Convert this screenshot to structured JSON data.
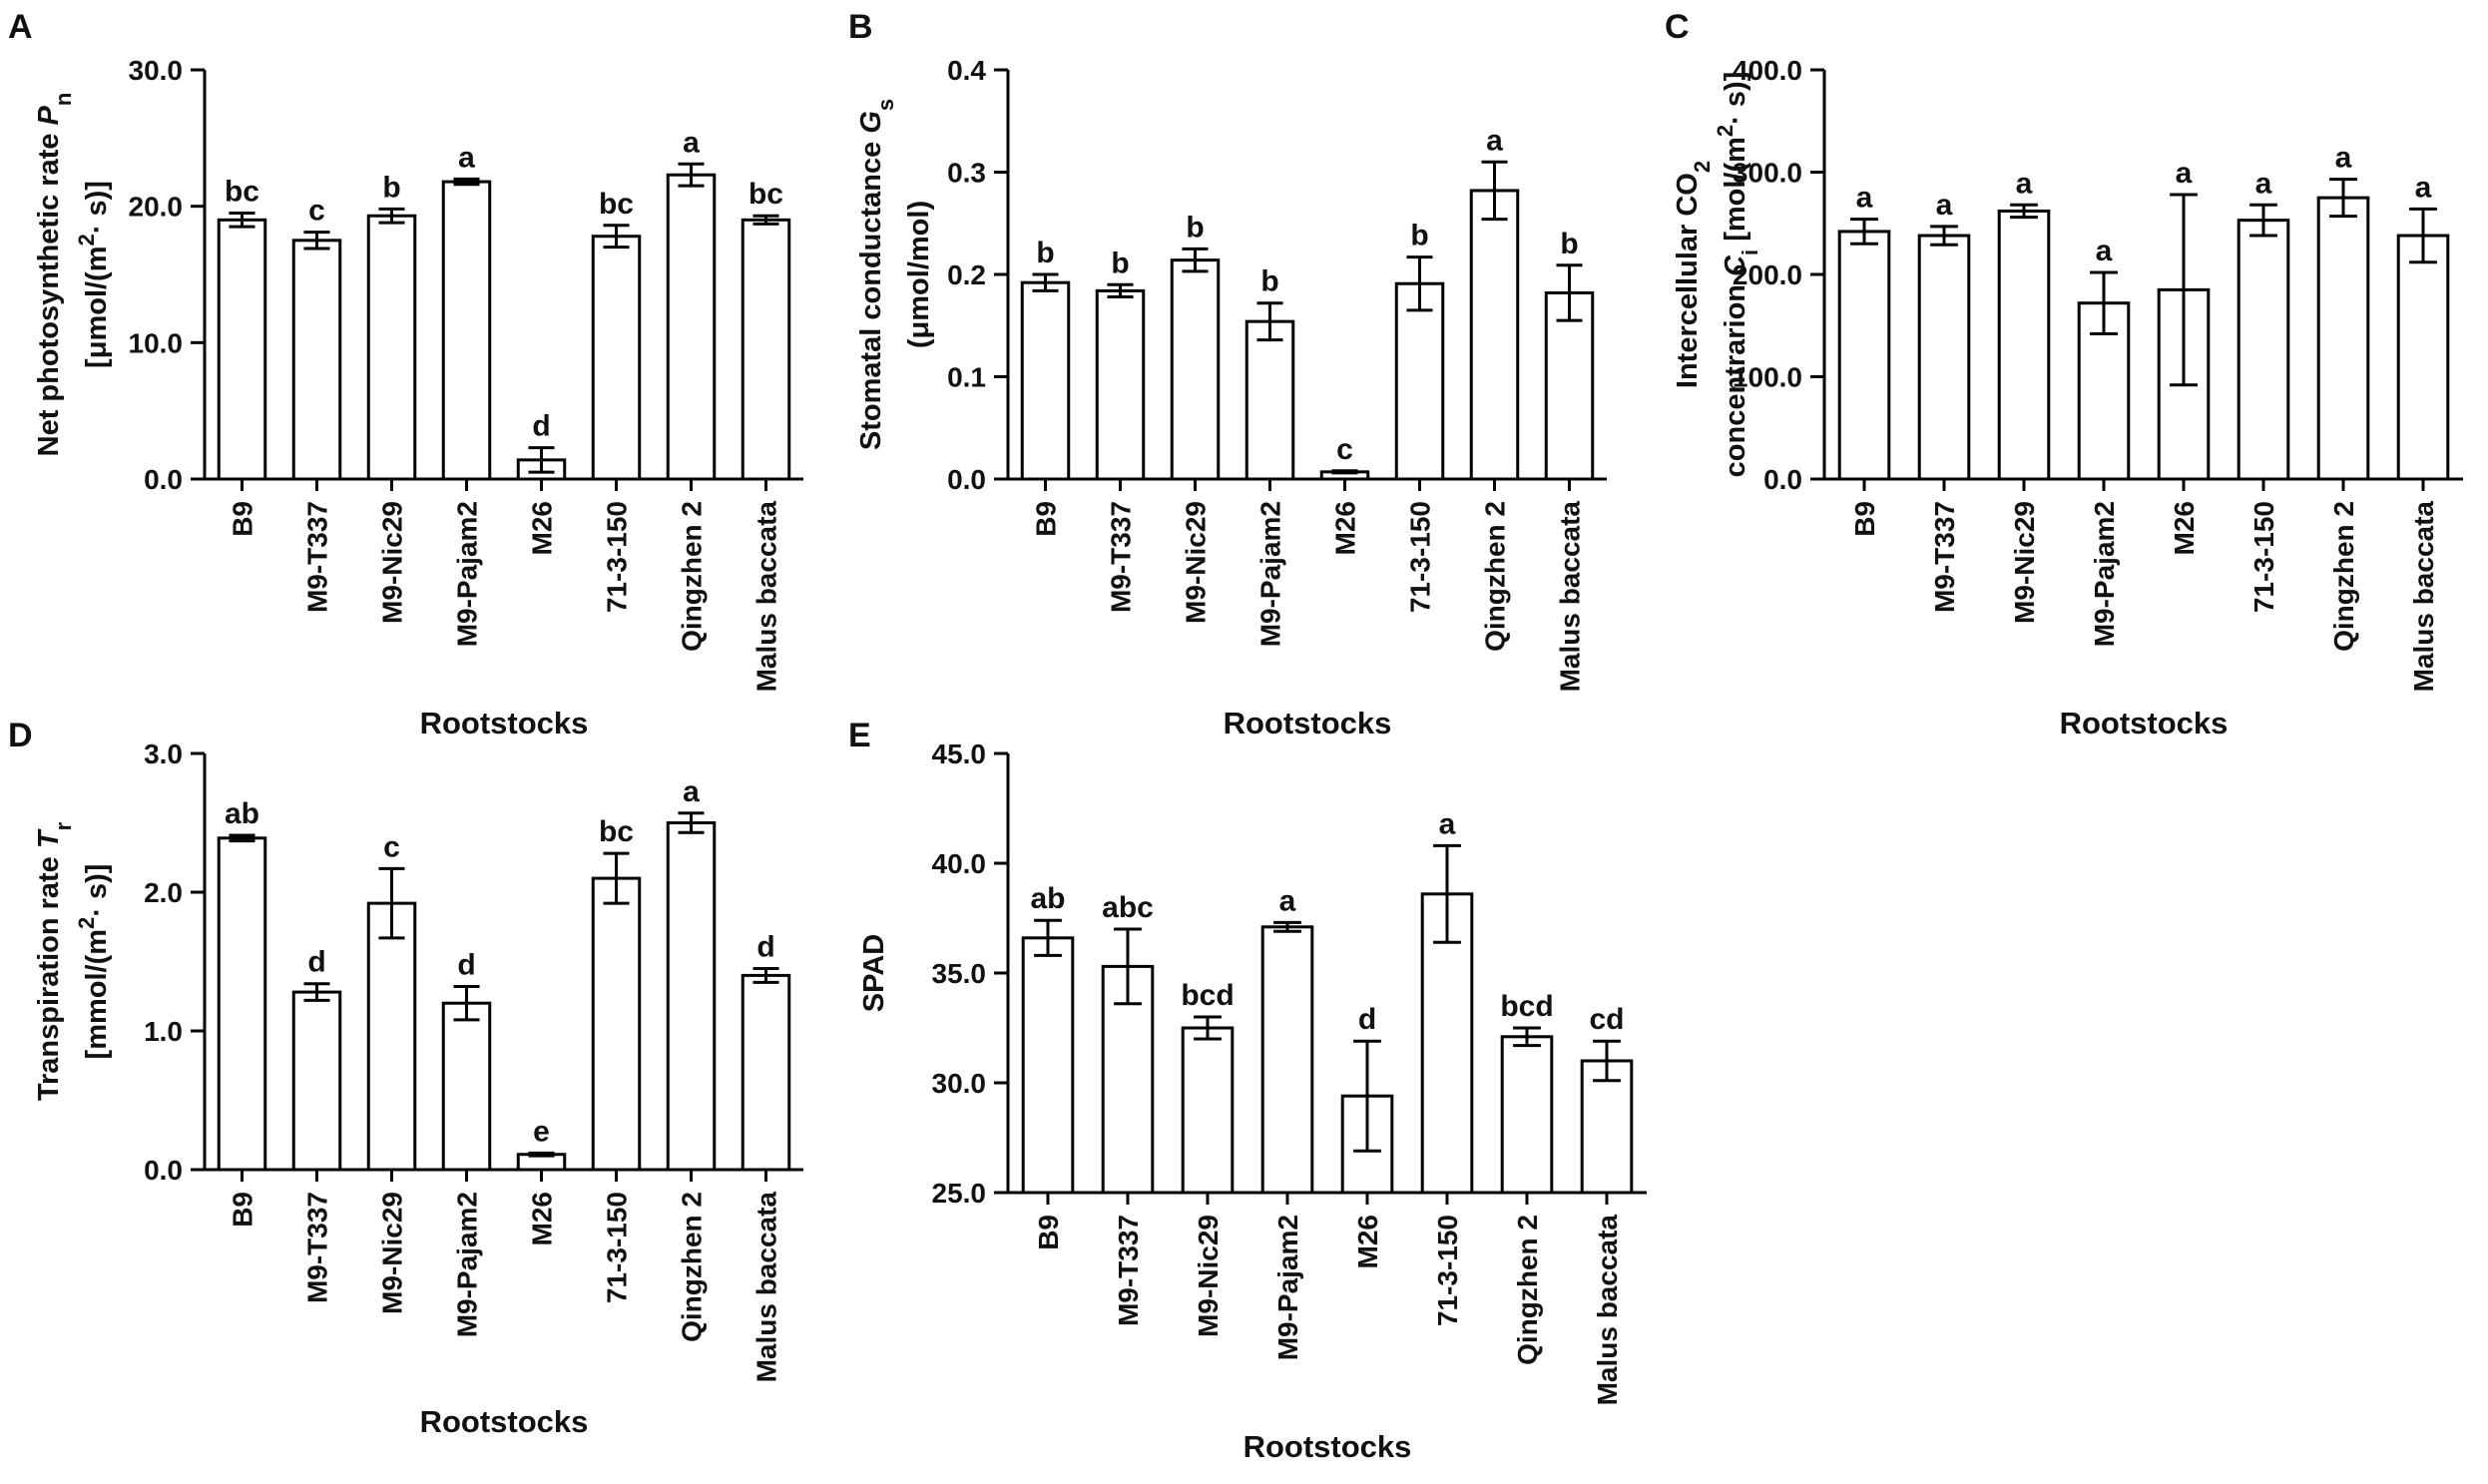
{
  "figure": {
    "categories": [
      "B9",
      "M9-T337",
      "M9-Nic29",
      "M9-Pajam2",
      "M26",
      "71-3-150",
      "Qingzhen 2",
      "Malus baccata"
    ],
    "xlabel": "Rootstocks"
  },
  "chart_data": [
    {
      "panel": "A",
      "type": "bar",
      "ylabel": "Net photosynthetic rate Pn [μmol/(m2· s)]",
      "ylabel_lines": [
        [
          {
            "t": "Net photosynthetic rate "
          },
          {
            "t": "P",
            "style": "italic"
          },
          {
            "t": "n",
            "style": "sub"
          }
        ],
        [
          {
            "t": "[μmol/(m"
          },
          {
            "t": "2",
            "style": "sup"
          },
          {
            "t": "· s)]"
          }
        ]
      ],
      "xlabel": "Rootstocks",
      "ylim": [
        0,
        30
      ],
      "ticks": [
        0,
        10,
        20,
        30
      ],
      "tick_labels": [
        "0.0",
        "10.0",
        "20.0",
        "30.0"
      ],
      "categories": [
        "B9",
        "M9-T337",
        "M9-Nic29",
        "M9-Pajam2",
        "M26",
        "71-3-150",
        "Qingzhen 2",
        "Malus baccata"
      ],
      "values": [
        19.0,
        17.5,
        19.3,
        21.8,
        1.4,
        17.8,
        22.3,
        19.0
      ],
      "errors": [
        0.5,
        0.6,
        0.5,
        0.2,
        0.9,
        0.8,
        0.8,
        0.3
      ],
      "letters": [
        "bc",
        "c",
        "b",
        "a",
        "d",
        "bc",
        "a",
        "bc"
      ]
    },
    {
      "panel": "B",
      "type": "bar",
      "ylabel": "Stomatal conductance Gs (μmol/mol)",
      "ylabel_lines": [
        [
          {
            "t": "Stomatal conductance "
          },
          {
            "t": "G",
            "style": "italic"
          },
          {
            "t": "s",
            "style": "sub"
          }
        ],
        [
          {
            "t": "(μmol/mol)"
          }
        ]
      ],
      "xlabel": "Rootstocks",
      "ylim": [
        0,
        0.4
      ],
      "ticks": [
        0,
        0.1,
        0.2,
        0.3,
        0.4
      ],
      "tick_labels": [
        "0.0",
        "0.1",
        "0.2",
        "0.3",
        "0.4"
      ],
      "categories": [
        "B9",
        "M9-T337",
        "M9-Nic29",
        "M9-Pajam2",
        "M26",
        "71-3-150",
        "Qingzhen 2",
        "Malus baccata"
      ],
      "values": [
        0.192,
        0.184,
        0.214,
        0.154,
        0.007,
        0.191,
        0.282,
        0.182
      ],
      "errors": [
        0.008,
        0.006,
        0.011,
        0.018,
        0.001,
        0.026,
        0.028,
        0.027
      ],
      "letters": [
        "b",
        "b",
        "b",
        "b",
        "c",
        "b",
        "a",
        "b"
      ]
    },
    {
      "panel": "C",
      "type": "bar",
      "ylabel": "Intercellular CO2 concentrarion Ci [mol/(m2· s)]",
      "ylabel_lines": [
        [
          {
            "t": "Intercellular CO"
          },
          {
            "t": "2",
            "style": "sub"
          }
        ],
        [
          {
            "t": "concentrarion "
          },
          {
            "t": "C",
            "style": "italic"
          },
          {
            "t": "i",
            "style": "sub"
          },
          {
            "t": " [mol/(m"
          },
          {
            "t": "2",
            "style": "sup"
          },
          {
            "t": "· s)]"
          }
        ]
      ],
      "xlabel": "Rootstocks",
      "ylim": [
        0,
        400
      ],
      "ticks": [
        0,
        100,
        200,
        300,
        400
      ],
      "tick_labels": [
        "0.0",
        "100.0",
        "200.0",
        "300.0",
        "400.0"
      ],
      "categories": [
        "B9",
        "M9-T337",
        "M9-Nic29",
        "M9-Pajam2",
        "M26",
        "71-3-150",
        "Qingzhen 2",
        "Malus baccata"
      ],
      "values": [
        242,
        238,
        262,
        172,
        185,
        253,
        275,
        238
      ],
      "errors": [
        12,
        9,
        6,
        30,
        93,
        15,
        18,
        26
      ],
      "letters": [
        "a",
        "a",
        "a",
        "a",
        "a",
        "a",
        "a",
        "a"
      ]
    },
    {
      "panel": "D",
      "type": "bar",
      "ylabel": "Transpiration rate Tr [mmol/(m2· s)]",
      "ylabel_lines": [
        [
          {
            "t": "Transpiration rate "
          },
          {
            "t": "T",
            "style": "italic"
          },
          {
            "t": "r",
            "style": "sub"
          }
        ],
        [
          {
            "t": "[mmol/(m"
          },
          {
            "t": "2",
            "style": "sup"
          },
          {
            "t": "· s)]"
          }
        ]
      ],
      "xlabel": "Rootstocks",
      "ylim": [
        0,
        3
      ],
      "ticks": [
        0,
        1,
        2,
        3
      ],
      "tick_labels": [
        "0.0",
        "1.0",
        "2.0",
        "3.0"
      ],
      "categories": [
        "B9",
        "M9-T337",
        "M9-Nic29",
        "M9-Pajam2",
        "M26",
        "71-3-150",
        "Qingzhen 2",
        "Malus baccata"
      ],
      "values": [
        2.39,
        1.28,
        1.92,
        1.2,
        0.11,
        2.1,
        2.5,
        1.4
      ],
      "errors": [
        0.02,
        0.06,
        0.25,
        0.12,
        0.01,
        0.18,
        0.07,
        0.05
      ],
      "letters": [
        "ab",
        "d",
        "c",
        "d",
        "e",
        "bc",
        "a",
        "d"
      ]
    },
    {
      "panel": "E",
      "type": "bar",
      "ylabel": "SPAD",
      "ylabel_lines": [
        [
          {
            "t": "SPAD"
          }
        ]
      ],
      "xlabel": "Rootstocks",
      "ylim": [
        25,
        45
      ],
      "ticks": [
        25,
        30,
        35,
        40,
        45
      ],
      "tick_labels": [
        "25.0",
        "30.0",
        "35.0",
        "40.0",
        "45.0"
      ],
      "categories": [
        "B9",
        "M9-T337",
        "M9-Nic29",
        "M9-Pajam2",
        "M26",
        "71-3-150",
        "Qingzhen 2",
        "Malus baccata"
      ],
      "values": [
        36.6,
        35.3,
        32.5,
        37.1,
        29.4,
        38.6,
        32.1,
        31.0
      ],
      "errors": [
        0.8,
        1.7,
        0.5,
        0.2,
        2.5,
        2.2,
        0.4,
        0.9
      ],
      "letters": [
        "ab",
        "abc",
        "bcd",
        "a",
        "d",
        "a",
        "bcd",
        "cd"
      ]
    }
  ]
}
